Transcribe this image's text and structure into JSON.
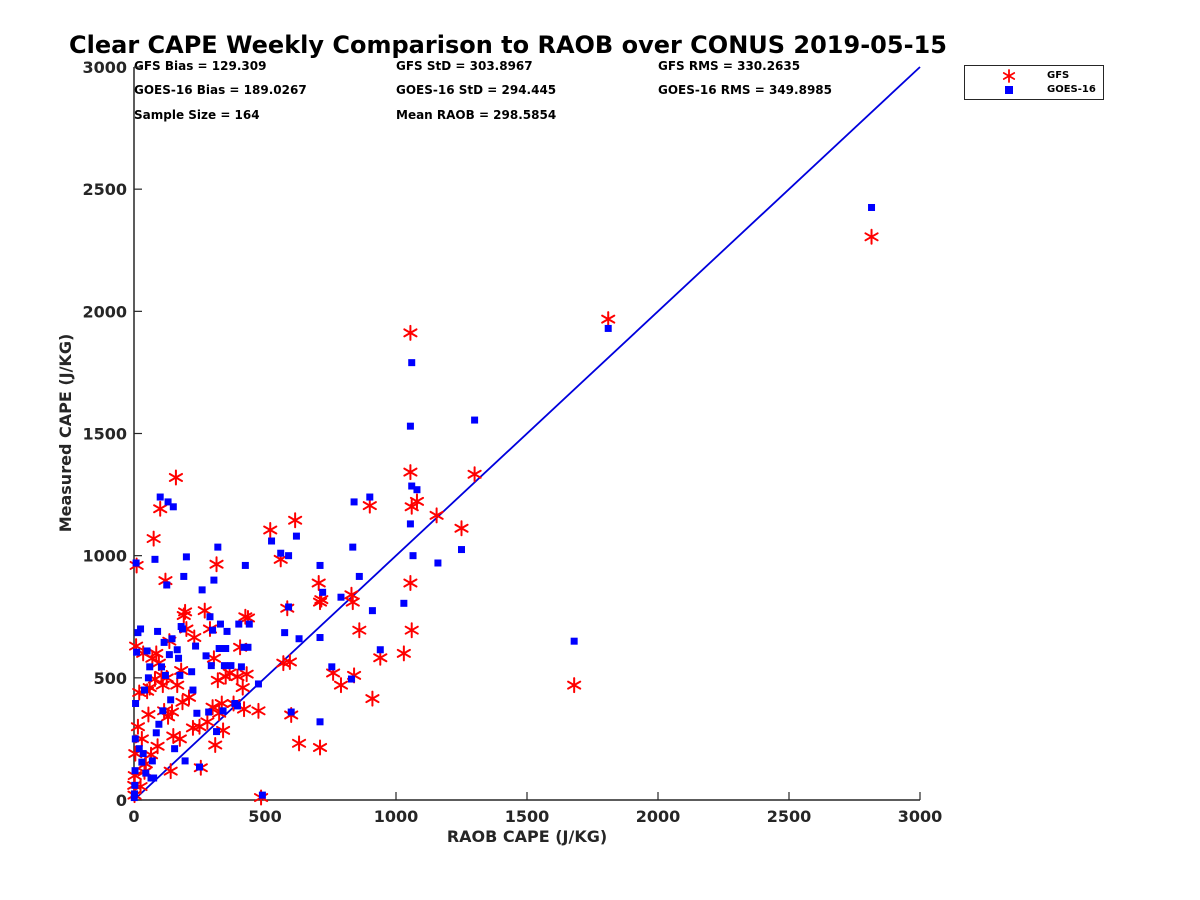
{
  "chart_data": {
    "type": "scatter",
    "title": "Clear CAPE Weekly Comparison to RAOB over CONUS 2019-05-15",
    "xlabel": "RAOB CAPE (J/KG)",
    "ylabel": "Measured CAPE (J/KG)",
    "xlim": [
      0,
      3000
    ],
    "ylim": [
      0,
      3000
    ],
    "xticks": [
      "0",
      "500",
      "1000",
      "1500",
      "2000",
      "2500",
      "3000"
    ],
    "yticks": [
      "0",
      "500",
      "1000",
      "1500",
      "2000",
      "2500",
      "3000"
    ],
    "grid": false,
    "legend_placement": "outside-top-right",
    "stats": {
      "gfs_bias": "GFS Bias = 129.309",
      "gfs_std": "GFS StD = 303.8967",
      "gfs_rms": "GFS RMS = 330.2635",
      "goes_bias": "GOES-16 Bias = 189.0267",
      "goes_std": "GOES-16 StD = 294.445",
      "goes_rms": "GOES-16 RMS = 349.8985",
      "sample_size": "Sample Size = 164",
      "mean_raob": "Mean RAOB = 298.5854"
    },
    "reference_line": {
      "color": "#0000dd",
      "x": [
        0,
        3000
      ],
      "y": [
        0,
        3000
      ]
    },
    "series": [
      {
        "name": "GFS",
        "marker": "asterisk",
        "color": "#ff0000",
        "points": [
          [
            1055,
            1912
          ],
          [
            1810,
            1968
          ],
          [
            2815,
            2305
          ],
          [
            1680,
            470
          ],
          [
            1300,
            1333
          ],
          [
            1055,
            1342
          ],
          [
            1250,
            1112
          ],
          [
            1155,
            1165
          ],
          [
            1060,
            1200
          ],
          [
            1080,
            1222
          ],
          [
            1055,
            888
          ],
          [
            1060,
            695
          ],
          [
            1030,
            600
          ],
          [
            940,
            582
          ],
          [
            910,
            415
          ],
          [
            900,
            1205
          ],
          [
            860,
            695
          ],
          [
            840,
            510
          ],
          [
            835,
            810
          ],
          [
            830,
            840
          ],
          [
            790,
            470
          ],
          [
            760,
            520
          ],
          [
            715,
            820
          ],
          [
            710,
            810
          ],
          [
            705,
            888
          ],
          [
            710,
            215
          ],
          [
            630,
            232
          ],
          [
            615,
            1145
          ],
          [
            595,
            565
          ],
          [
            600,
            348
          ],
          [
            585,
            785
          ],
          [
            570,
            560
          ],
          [
            560,
            985
          ],
          [
            520,
            1105
          ],
          [
            485,
            10
          ],
          [
            475,
            365
          ],
          [
            435,
            745
          ],
          [
            425,
            750
          ],
          [
            430,
            515
          ],
          [
            420,
            372
          ],
          [
            415,
            460
          ],
          [
            405,
            625
          ],
          [
            395,
            505
          ],
          [
            380,
            395
          ],
          [
            365,
            520
          ],
          [
            350,
            505
          ],
          [
            340,
            285
          ],
          [
            335,
            395
          ],
          [
            325,
            355
          ],
          [
            320,
            490
          ],
          [
            315,
            965
          ],
          [
            310,
            225
          ],
          [
            305,
            580
          ],
          [
            300,
            380
          ],
          [
            290,
            700
          ],
          [
            280,
            320
          ],
          [
            270,
            775
          ],
          [
            255,
            132
          ],
          [
            250,
            300
          ],
          [
            230,
            665
          ],
          [
            225,
            295
          ],
          [
            210,
            420
          ],
          [
            200,
            700
          ],
          [
            195,
            770
          ],
          [
            190,
            755
          ],
          [
            185,
            400
          ],
          [
            180,
            530
          ],
          [
            175,
            250
          ],
          [
            165,
            470
          ],
          [
            160,
            1320
          ],
          [
            150,
            262
          ],
          [
            145,
            360
          ],
          [
            140,
            118
          ],
          [
            135,
            650
          ],
          [
            130,
            340
          ],
          [
            125,
            500
          ],
          [
            120,
            898
          ],
          [
            115,
            365
          ],
          [
            110,
            470
          ],
          [
            105,
            510
          ],
          [
            100,
            1192
          ],
          [
            95,
            560
          ],
          [
            90,
            220
          ],
          [
            85,
            600
          ],
          [
            80,
            495
          ],
          [
            75,
            1070
          ],
          [
            70,
            580
          ],
          [
            65,
            185
          ],
          [
            60,
            460
          ],
          [
            55,
            350
          ],
          [
            50,
            445
          ],
          [
            45,
            148
          ],
          [
            40,
            115
          ],
          [
            35,
            600
          ],
          [
            30,
            250
          ],
          [
            25,
            55
          ],
          [
            20,
            440
          ],
          [
            15,
            300
          ],
          [
            10,
            960
          ],
          [
            8,
            630
          ],
          [
            5,
            190
          ],
          [
            3,
            100
          ],
          [
            2,
            20
          ],
          [
            1,
            60
          ]
        ]
      },
      {
        "name": "GOES-16",
        "marker": "square",
        "color": "#0000ff",
        "points": [
          [
            2815,
            2425
          ],
          [
            1810,
            1930
          ],
          [
            1680,
            650
          ],
          [
            1300,
            1555
          ],
          [
            1060,
            1790
          ],
          [
            1055,
            1530
          ],
          [
            1060,
            1285
          ],
          [
            1080,
            1270
          ],
          [
            1055,
            1130
          ],
          [
            1065,
            1000
          ],
          [
            1250,
            1025
          ],
          [
            1160,
            970
          ],
          [
            1030,
            805
          ],
          [
            940,
            615
          ],
          [
            910,
            775
          ],
          [
            900,
            1240
          ],
          [
            860,
            915
          ],
          [
            840,
            1220
          ],
          [
            835,
            1035
          ],
          [
            830,
            495
          ],
          [
            790,
            830
          ],
          [
            755,
            545
          ],
          [
            720,
            850
          ],
          [
            710,
            960
          ],
          [
            710,
            665
          ],
          [
            710,
            320
          ],
          [
            630,
            660
          ],
          [
            620,
            1080
          ],
          [
            590,
            790
          ],
          [
            590,
            1000
          ],
          [
            575,
            685
          ],
          [
            560,
            1010
          ],
          [
            600,
            360
          ],
          [
            525,
            1060
          ],
          [
            490,
            20
          ],
          [
            475,
            475
          ],
          [
            440,
            720
          ],
          [
            435,
            625
          ],
          [
            425,
            960
          ],
          [
            420,
            625
          ],
          [
            410,
            545
          ],
          [
            400,
            720
          ],
          [
            395,
            385
          ],
          [
            385,
            395
          ],
          [
            370,
            550
          ],
          [
            355,
            690
          ],
          [
            350,
            620
          ],
          [
            345,
            550
          ],
          [
            340,
            365
          ],
          [
            330,
            720
          ],
          [
            325,
            620
          ],
          [
            320,
            1035
          ],
          [
            315,
            280
          ],
          [
            305,
            900
          ],
          [
            300,
            695
          ],
          [
            295,
            550
          ],
          [
            290,
            750
          ],
          [
            285,
            360
          ],
          [
            275,
            590
          ],
          [
            260,
            860
          ],
          [
            250,
            135
          ],
          [
            240,
            355
          ],
          [
            235,
            630
          ],
          [
            225,
            450
          ],
          [
            220,
            525
          ],
          [
            200,
            995
          ],
          [
            195,
            160
          ],
          [
            190,
            915
          ],
          [
            185,
            700
          ],
          [
            180,
            710
          ],
          [
            175,
            510
          ],
          [
            170,
            580
          ],
          [
            165,
            615
          ],
          [
            155,
            210
          ],
          [
            150,
            1200
          ],
          [
            145,
            660
          ],
          [
            140,
            410
          ],
          [
            135,
            595
          ],
          [
            130,
            1220
          ],
          [
            125,
            880
          ],
          [
            120,
            510
          ],
          [
            115,
            645
          ],
          [
            110,
            365
          ],
          [
            105,
            545
          ],
          [
            100,
            1240
          ],
          [
            95,
            310
          ],
          [
            90,
            690
          ],
          [
            85,
            275
          ],
          [
            80,
            985
          ],
          [
            75,
            90
          ],
          [
            70,
            160
          ],
          [
            65,
            90
          ],
          [
            60,
            545
          ],
          [
            55,
            500
          ],
          [
            50,
            610
          ],
          [
            45,
            110
          ],
          [
            40,
            450
          ],
          [
            35,
            190
          ],
          [
            30,
            155
          ],
          [
            25,
            700
          ],
          [
            20,
            210
          ],
          [
            15,
            685
          ],
          [
            10,
            605
          ],
          [
            8,
            970
          ],
          [
            6,
            395
          ],
          [
            5,
            250
          ],
          [
            4,
            120
          ],
          [
            3,
            60
          ],
          [
            2,
            25
          ],
          [
            1,
            10
          ]
        ]
      }
    ]
  }
}
